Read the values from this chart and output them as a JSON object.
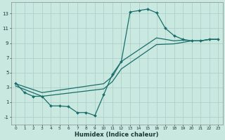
{
  "xlabel": "Humidex (Indice chaleur)",
  "bg_color": "#c8e8e0",
  "line_color": "#1a6e6a",
  "grid_color": "#aaccC4",
  "xlim": [
    -0.5,
    23.5
  ],
  "ylim": [
    -2.0,
    14.5
  ],
  "xtick_vals": [
    0,
    1,
    2,
    3,
    4,
    5,
    6,
    7,
    8,
    9,
    10,
    11,
    12,
    13,
    14,
    15,
    16,
    17,
    18,
    19,
    20,
    21,
    22,
    23
  ],
  "ytick_vals": [
    -1,
    1,
    3,
    5,
    7,
    9,
    11,
    13
  ],
  "curve1_x": [
    0,
    1,
    2,
    3,
    4,
    5,
    6,
    7,
    8,
    9,
    10,
    11,
    12,
    13,
    14,
    15,
    16,
    17,
    18,
    19,
    20,
    21,
    22,
    23
  ],
  "curve1_y": [
    3.6,
    2.3,
    1.8,
    1.8,
    0.5,
    0.5,
    0.4,
    -0.4,
    -0.4,
    -0.8,
    2.0,
    4.8,
    6.5,
    13.2,
    13.4,
    13.6,
    13.1,
    11.0,
    10.0,
    9.5,
    9.3,
    9.3,
    9.5,
    9.5
  ],
  "curve2_x": [
    0,
    3,
    10,
    11,
    12,
    16,
    18,
    19,
    20,
    21,
    22,
    23
  ],
  "curve2_y": [
    3.5,
    2.3,
    3.5,
    4.5,
    6.5,
    9.7,
    9.3,
    9.4,
    9.3,
    9.3,
    9.5,
    9.5
  ],
  "curve3_x": [
    0,
    3,
    10,
    11,
    12,
    16,
    18,
    19,
    20,
    21,
    22,
    23
  ],
  "curve3_y": [
    3.2,
    1.8,
    2.8,
    3.8,
    5.5,
    8.8,
    8.9,
    9.1,
    9.3,
    9.3,
    9.5,
    9.5
  ],
  "lw": 0.9,
  "ms": 2.0
}
